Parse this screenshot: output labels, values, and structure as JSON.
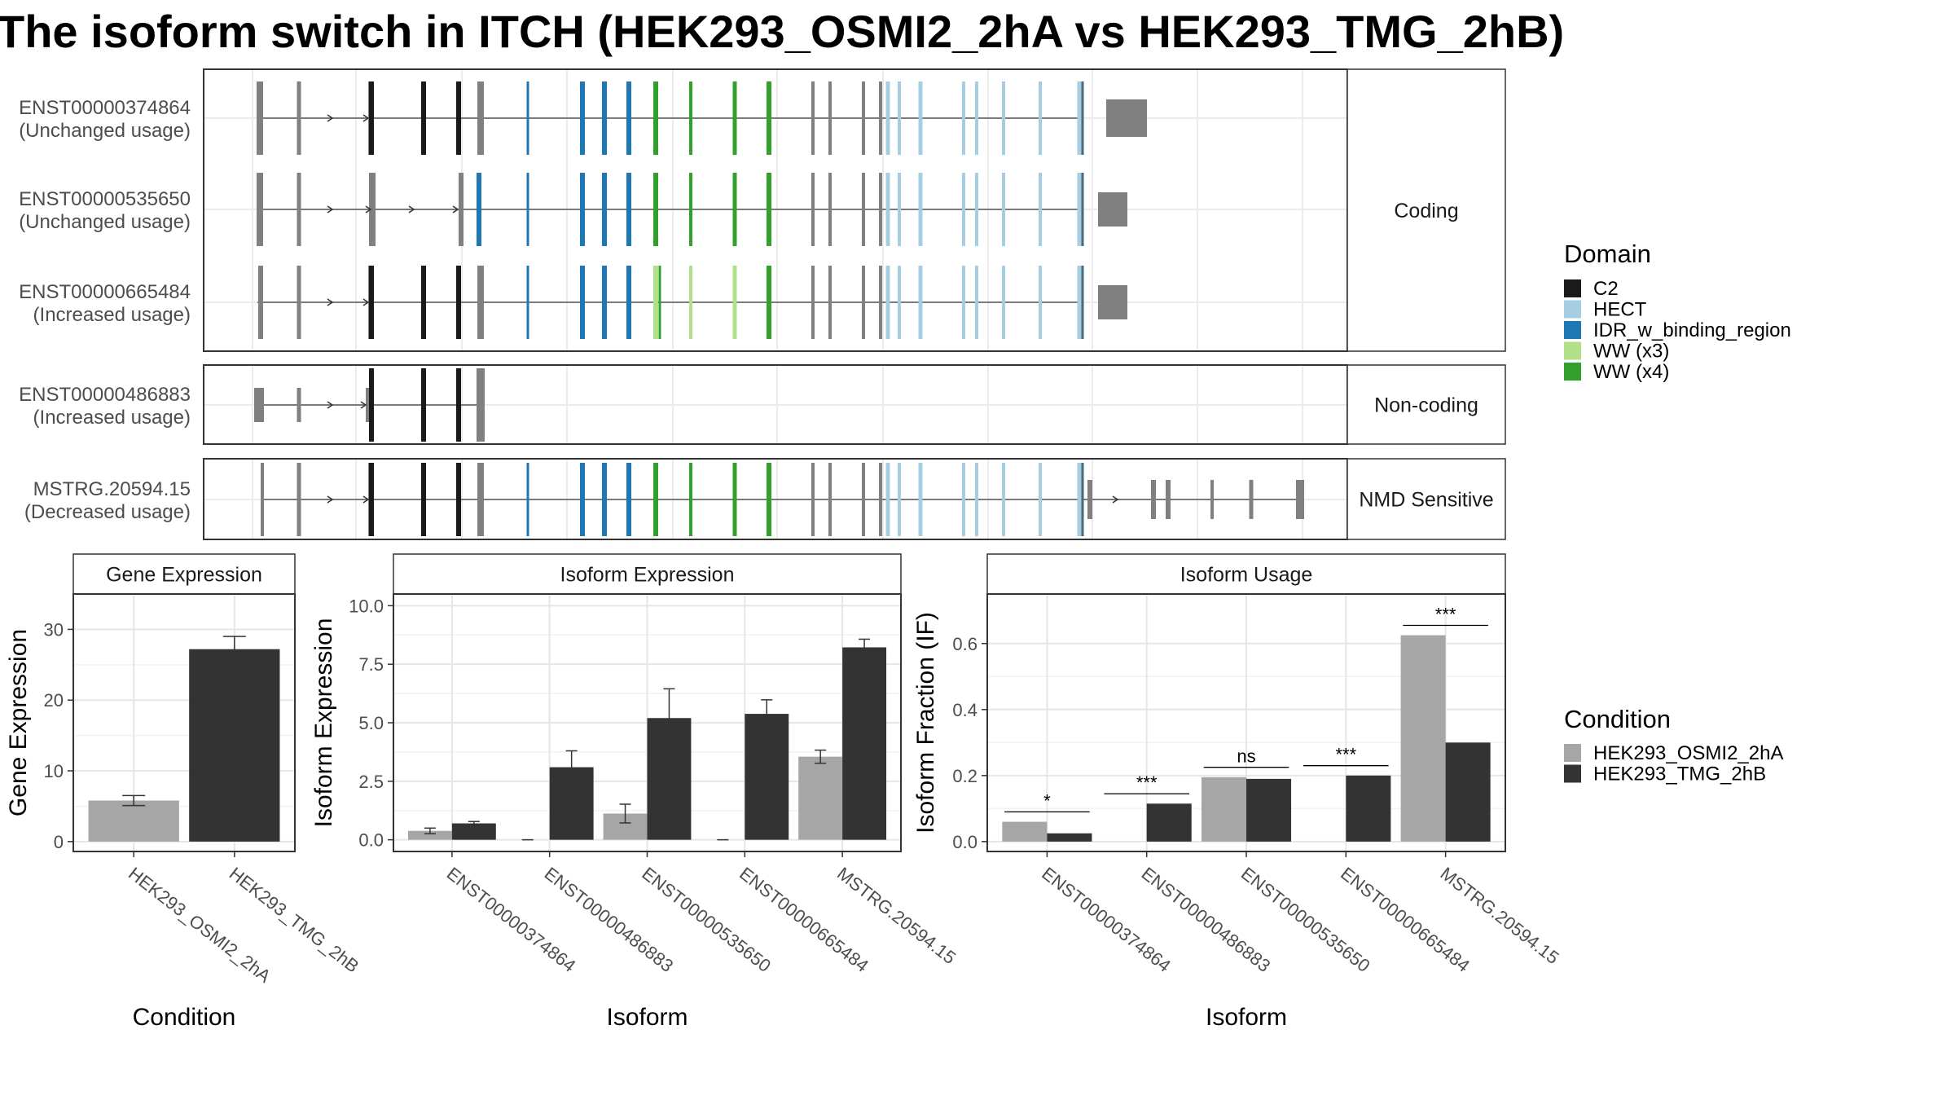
{
  "title": "The isoform switch in ITCH (HEK293_OSMI2_2hA vs HEK293_TMG_2hB)",
  "chart_data": [
    {
      "type": "gene-structure",
      "transcripts": [
        {
          "id": "ENST00000374864",
          "usage": "(Unchanged usage)",
          "group": "Coding"
        },
        {
          "id": "ENST00000535650",
          "usage": "(Unchanged usage)",
          "group": "Coding"
        },
        {
          "id": "ENST00000665484",
          "usage": "(Increased usage)",
          "group": "Coding"
        },
        {
          "id": "ENST00000486883",
          "usage": "(Increased usage)",
          "group": "Non-coding"
        },
        {
          "id": "MSTRG.20594.15",
          "usage": "(Decreased usage)",
          "group": "NMD Sensitive"
        }
      ],
      "groups": [
        "Coding",
        "Non-coding",
        "NMD Sensitive"
      ],
      "legend": {
        "title": "Domain",
        "items": [
          {
            "label": "C2",
            "color": "#1a1a1a"
          },
          {
            "label": "HECT",
            "color": "#a6cee3"
          },
          {
            "label": "IDR_w_binding_region",
            "color": "#1f78b4"
          },
          {
            "label": "WW (x3)",
            "color": "#b2df8a"
          },
          {
            "label": "WW (x4)",
            "color": "#33a02c"
          }
        ]
      },
      "utr_color": "#808080"
    },
    {
      "type": "bar",
      "title": "Gene Expression",
      "xlabel": "Condition",
      "ylabel": "Gene Expression",
      "categories": [
        "HEK293_OSMI2_2hA",
        "HEK293_TMG_2hB"
      ],
      "values": [
        5.8,
        27.2
      ],
      "errors": [
        0.7,
        1.8
      ],
      "ylim": [
        -1.4,
        35
      ],
      "yticks": [
        "0",
        "10",
        "20",
        "30"
      ],
      "colors": [
        "#a6a6a6",
        "#333333"
      ]
    },
    {
      "type": "bar",
      "title": "Isoform Expression",
      "xlabel": "Isoform",
      "ylabel": "Isoform Expression",
      "categories": [
        "ENST00000374864",
        "ENST00000486883",
        "ENST00000535650",
        "ENST00000665484",
        "MSTRG.20594.15"
      ],
      "series": [
        {
          "name": "HEK293_OSMI2_2hA",
          "values": [
            0.38,
            0.0,
            1.12,
            0.0,
            3.55
          ],
          "errors": [
            0.12,
            0.0,
            0.4,
            0.0,
            0.28
          ]
        },
        {
          "name": "HEK293_TMG_2hB",
          "values": [
            0.7,
            3.1,
            5.2,
            5.38,
            8.22
          ],
          "errors": [
            0.08,
            0.7,
            1.25,
            0.6,
            0.35
          ]
        }
      ],
      "ylim": [
        -0.5,
        10.5
      ],
      "yticks": [
        "0.0",
        "2.5",
        "5.0",
        "7.5",
        "10.0"
      ]
    },
    {
      "type": "bar",
      "title": "Isoform Usage",
      "xlabel": "Isoform",
      "ylabel": "Isoform Fraction (IF)",
      "categories": [
        "ENST00000374864",
        "ENST00000486883",
        "ENST00000535650",
        "ENST00000665484",
        "MSTRG.20594.15"
      ],
      "series": [
        {
          "name": "HEK293_OSMI2_2hA",
          "values": [
            0.06,
            0.0,
            0.195,
            0.0,
            0.625
          ]
        },
        {
          "name": "HEK293_TMG_2hB",
          "values": [
            0.025,
            0.115,
            0.19,
            0.2,
            0.3
          ]
        }
      ],
      "significance": [
        "*",
        "***",
        "ns",
        "***",
        "***"
      ],
      "ylim": [
        -0.03,
        0.75
      ],
      "yticks": [
        "0.0",
        "0.2",
        "0.4",
        "0.6"
      ]
    }
  ],
  "condition_legend": {
    "title": "Condition",
    "items": [
      {
        "label": "HEK293_OSMI2_2hA",
        "color": "#a6a6a6"
      },
      {
        "label": "HEK293_TMG_2hB",
        "color": "#333333"
      }
    ]
  }
}
